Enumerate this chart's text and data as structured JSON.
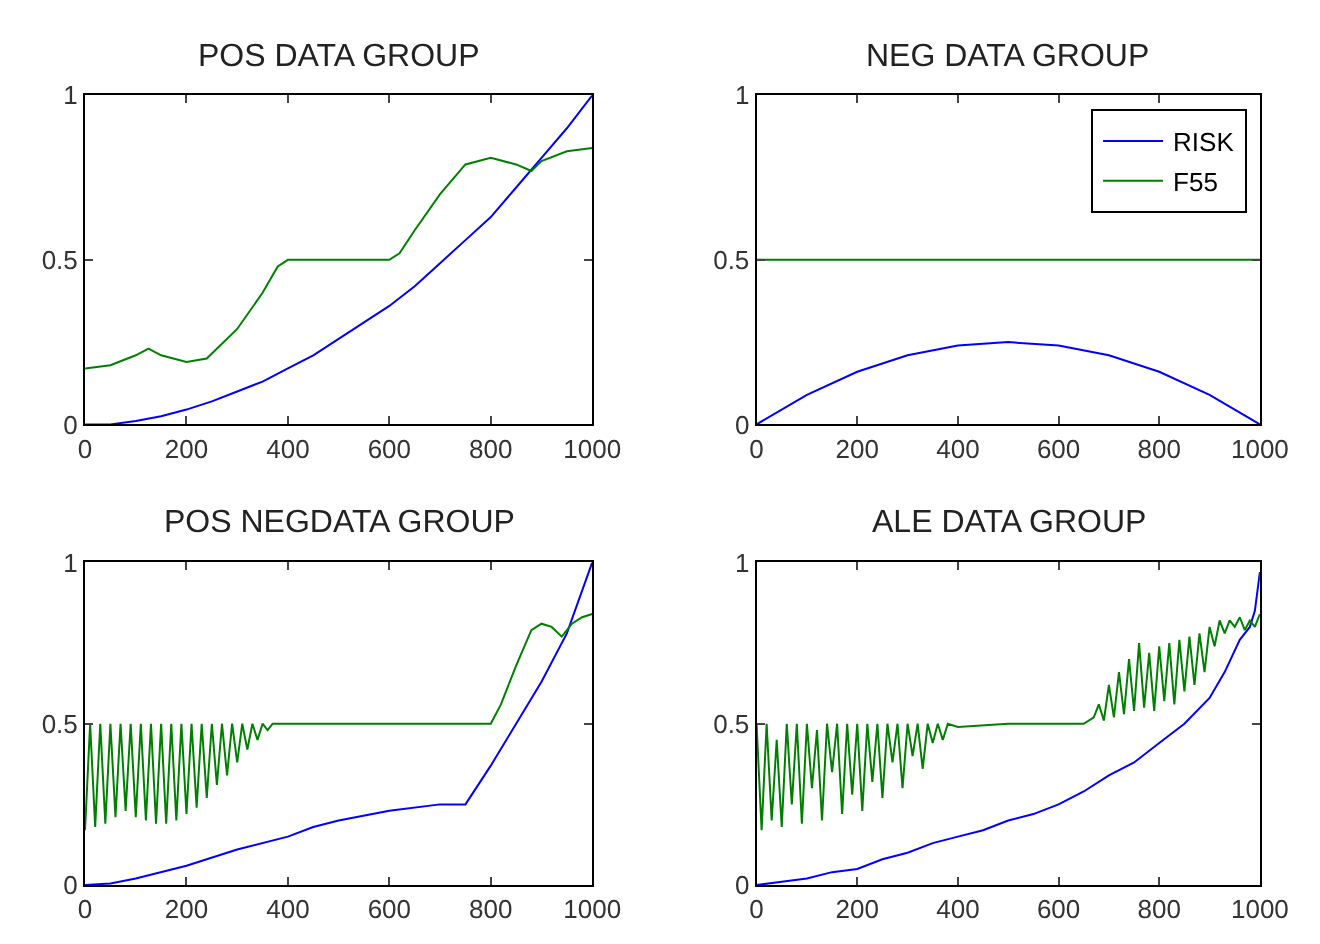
{
  "chart_data": [
    {
      "type": "line",
      "title": "POS DATA GROUP",
      "xlim": [
        0,
        1000
      ],
      "xticks": [
        0,
        200,
        400,
        600,
        800,
        1000
      ],
      "ylim": [
        0,
        1
      ],
      "yticks": [
        0,
        0.5,
        1
      ],
      "legend": false,
      "series": [
        {
          "color": "#0000ff",
          "x": [
            0,
            50,
            100,
            150,
            200,
            250,
            300,
            350,
            400,
            450,
            500,
            550,
            600,
            650,
            700,
            750,
            800,
            850,
            900,
            950,
            1000
          ],
          "values": [
            0,
            0,
            0.01,
            0.025,
            0.045,
            0.07,
            0.1,
            0.13,
            0.17,
            0.21,
            0.26,
            0.31,
            0.36,
            0.42,
            0.49,
            0.56,
            0.63,
            0.72,
            0.81,
            0.9,
            1.0
          ]
        },
        {
          "color": "#008000",
          "x": [
            0,
            50,
            100,
            125,
            150,
            200,
            240,
            300,
            350,
            380,
            400,
            500,
            600,
            620,
            650,
            700,
            750,
            800,
            850,
            880,
            900,
            950,
            1000
          ],
          "values": [
            0.17,
            0.18,
            0.21,
            0.23,
            0.21,
            0.19,
            0.2,
            0.29,
            0.4,
            0.48,
            0.5,
            0.5,
            0.5,
            0.52,
            0.59,
            0.7,
            0.79,
            0.81,
            0.79,
            0.77,
            0.8,
            0.83,
            0.84
          ]
        }
      ]
    },
    {
      "type": "line",
      "title": "NEG DATA GROUP",
      "xlim": [
        0,
        1000
      ],
      "xticks": [
        0,
        200,
        400,
        600,
        800,
        1000
      ],
      "ylim": [
        0,
        1
      ],
      "yticks": [
        0,
        0.5,
        1
      ],
      "legend": "top right",
      "series": [
        {
          "name": "RISK",
          "color": "#0000ff",
          "x": [
            0,
            100,
            200,
            300,
            400,
            500,
            600,
            700,
            800,
            900,
            1000
          ],
          "values": [
            0,
            0.09,
            0.16,
            0.21,
            0.24,
            0.25,
            0.24,
            0.21,
            0.16,
            0.09,
            0
          ]
        },
        {
          "name": "F55",
          "color": "#008000",
          "x": [
            0,
            1000
          ],
          "values": [
            0.5,
            0.5
          ]
        }
      ]
    },
    {
      "type": "line",
      "title": "POS NEGDATA GROUP",
      "xlim": [
        0,
        1000
      ],
      "xticks": [
        0,
        200,
        400,
        600,
        800,
        1000
      ],
      "ylim": [
        0,
        1
      ],
      "yticks": [
        0,
        0.5,
        1
      ],
      "legend": false,
      "series": [
        {
          "color": "#0000ff",
          "x": [
            0,
            50,
            100,
            200,
            300,
            400,
            450,
            500,
            600,
            700,
            750,
            800,
            850,
            900,
            950,
            1000
          ],
          "values": [
            0,
            0.005,
            0.02,
            0.06,
            0.11,
            0.15,
            0.18,
            0.2,
            0.23,
            0.25,
            0.25,
            0.37,
            0.5,
            0.63,
            0.78,
            1.0
          ]
        },
        {
          "color": "#008000",
          "x": [
            0,
            10,
            20,
            30,
            40,
            50,
            60,
            70,
            80,
            90,
            100,
            110,
            120,
            130,
            140,
            150,
            160,
            170,
            180,
            190,
            200,
            210,
            220,
            230,
            240,
            250,
            260,
            270,
            280,
            290,
            300,
            310,
            320,
            330,
            340,
            350,
            360,
            370,
            380,
            500,
            600,
            700,
            800,
            820,
            850,
            880,
            900,
            920,
            940,
            960,
            980,
            1000
          ],
          "values": [
            0.17,
            0.5,
            0.18,
            0.5,
            0.19,
            0.5,
            0.21,
            0.5,
            0.23,
            0.5,
            0.21,
            0.5,
            0.2,
            0.5,
            0.19,
            0.5,
            0.19,
            0.5,
            0.2,
            0.5,
            0.22,
            0.5,
            0.24,
            0.5,
            0.27,
            0.5,
            0.31,
            0.5,
            0.34,
            0.5,
            0.38,
            0.5,
            0.42,
            0.5,
            0.45,
            0.5,
            0.48,
            0.5,
            0.5,
            0.5,
            0.5,
            0.5,
            0.5,
            0.56,
            0.68,
            0.79,
            0.81,
            0.8,
            0.77,
            0.81,
            0.83,
            0.84
          ]
        }
      ]
    },
    {
      "type": "line",
      "title": "ALE DATA GROUP",
      "xlim": [
        0,
        1000
      ],
      "xticks": [
        0,
        200,
        400,
        600,
        800,
        1000
      ],
      "ylim": [
        0,
        1
      ],
      "yticks": [
        0,
        0.5,
        1
      ],
      "legend": false,
      "series": [
        {
          "color": "#0000ff",
          "x": [
            0,
            50,
            100,
            150,
            200,
            250,
            300,
            350,
            400,
            450,
            500,
            550,
            600,
            650,
            700,
            750,
            800,
            850,
            900,
            930,
            960,
            980,
            990,
            1000
          ],
          "values": [
            0,
            0.01,
            0.02,
            0.04,
            0.05,
            0.08,
            0.1,
            0.13,
            0.15,
            0.17,
            0.2,
            0.22,
            0.25,
            0.29,
            0.34,
            0.38,
            0.44,
            0.5,
            0.58,
            0.66,
            0.76,
            0.8,
            0.85,
            0.97
          ]
        },
        {
          "color": "#008000",
          "x": [
            0,
            10,
            20,
            30,
            40,
            50,
            60,
            70,
            80,
            90,
            100,
            110,
            120,
            130,
            140,
            150,
            160,
            170,
            180,
            190,
            200,
            210,
            220,
            230,
            240,
            250,
            260,
            270,
            280,
            290,
            300,
            310,
            320,
            330,
            340,
            350,
            360,
            370,
            380,
            400,
            500,
            600,
            650,
            670,
            680,
            690,
            700,
            710,
            720,
            730,
            740,
            750,
            760,
            770,
            780,
            790,
            800,
            810,
            820,
            830,
            840,
            850,
            860,
            870,
            880,
            890,
            900,
            910,
            920,
            930,
            940,
            950,
            960,
            970,
            980,
            990,
            1000
          ],
          "values": [
            0.5,
            0.17,
            0.5,
            0.2,
            0.45,
            0.18,
            0.5,
            0.25,
            0.5,
            0.19,
            0.5,
            0.3,
            0.48,
            0.2,
            0.5,
            0.35,
            0.5,
            0.22,
            0.5,
            0.28,
            0.5,
            0.23,
            0.5,
            0.32,
            0.5,
            0.27,
            0.5,
            0.38,
            0.5,
            0.3,
            0.5,
            0.4,
            0.5,
            0.36,
            0.5,
            0.44,
            0.5,
            0.45,
            0.5,
            0.49,
            0.5,
            0.5,
            0.5,
            0.52,
            0.56,
            0.51,
            0.62,
            0.52,
            0.66,
            0.53,
            0.7,
            0.54,
            0.75,
            0.55,
            0.72,
            0.54,
            0.74,
            0.57,
            0.75,
            0.56,
            0.76,
            0.6,
            0.77,
            0.62,
            0.78,
            0.66,
            0.8,
            0.74,
            0.82,
            0.78,
            0.82,
            0.8,
            0.83,
            0.79,
            0.82,
            0.8,
            0.84
          ]
        }
      ]
    }
  ]
}
